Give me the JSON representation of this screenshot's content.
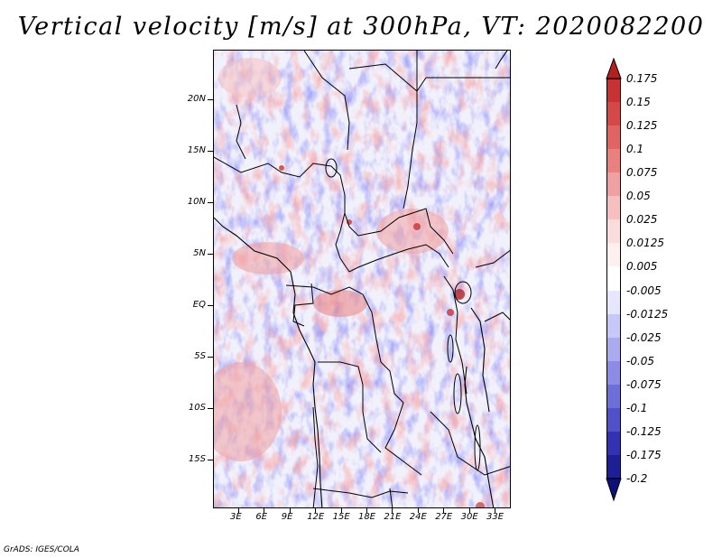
{
  "title": "Vertical velocity [m/s] at 300hPa, VT: 2020082200",
  "map": {
    "lat_labels": [
      "20N",
      "15N",
      "10N",
      "5N",
      "EQ",
      "5S",
      "10S",
      "15S"
    ],
    "lon_labels": [
      "3E",
      "6E",
      "9E",
      "12E",
      "15E",
      "18E",
      "21E",
      "24E",
      "27E",
      "30E",
      "33E"
    ]
  },
  "colorbar": {
    "labels": [
      "0.175",
      "0.15",
      "0.125",
      "0.1",
      "0.075",
      "0.05",
      "0.025",
      "0.0125",
      "0.005",
      "-0.005",
      "-0.0125",
      "-0.025",
      "-0.05",
      "-0.075",
      "-0.1",
      "-0.125",
      "-0.175",
      "-0.2"
    ],
    "colors": [
      "#b41f1f",
      "#c83232",
      "#d54848",
      "#e06464",
      "#e98080",
      "#f0a0a0",
      "#f6c0c0",
      "#fbdcdc",
      "#fff0f0",
      "#ffffff",
      "#e6e6ff",
      "#c8c8f8",
      "#aaaaf0",
      "#8c8ce6",
      "#6e6ed8",
      "#5050c8",
      "#3232b4",
      "#1e1e96",
      "#0f0f78"
    ]
  },
  "footer": "GrADS: IGES/COLA"
}
